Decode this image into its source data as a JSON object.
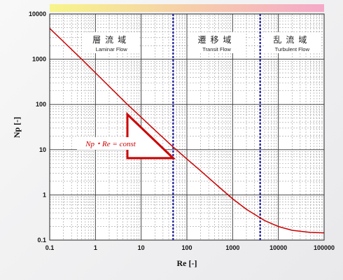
{
  "chart_data": {
    "type": "line",
    "x_scale": "log",
    "y_scale": "log",
    "xlim": [
      0.1,
      100000
    ],
    "ylim": [
      0.1,
      10000
    ],
    "xlabel": "Re [-]",
    "ylabel": "Np [-]",
    "x_ticks": [
      "0.1",
      "1",
      "10",
      "100",
      "1000",
      "10000",
      "100000"
    ],
    "y_ticks": [
      "10000",
      "1000",
      "100",
      "10",
      "1",
      "0.1"
    ],
    "grid": true,
    "series": [
      {
        "color": "#cc0000",
        "x": [
          0.1,
          0.2,
          0.5,
          1,
          2,
          5,
          10,
          20,
          50,
          100,
          200,
          500,
          1000,
          2000,
          5000,
          10000,
          20000,
          50000,
          100000
        ],
        "y": [
          4800,
          2450,
          1000,
          500,
          250,
          100,
          52,
          27,
          11.5,
          6.2,
          3.4,
          1.5,
          0.82,
          0.48,
          0.27,
          0.2,
          0.165,
          0.148,
          0.145
        ]
      }
    ],
    "regions": [
      {
        "label_jp": "層流域",
        "label_en": "Laminar Flow",
        "x_from": 0.1,
        "x_to": 50
      },
      {
        "label_jp": "遷移域",
        "label_en": "Transit Flow",
        "x_from": 50,
        "x_to": 4000
      },
      {
        "label_jp": "乱流域",
        "label_en": "Turbulent Flow",
        "x_from": 4000,
        "x_to": 100000
      }
    ],
    "boundaries": [
      50,
      4000
    ],
    "boundary_color": "#1a1aa0",
    "annotation": {
      "text": "Np・Re = const",
      "triangle_x": [
        5,
        50
      ],
      "triangle_y": [
        60,
        6.5
      ],
      "color": "#cc0000"
    },
    "top_bar_colors": [
      "#f7f58a",
      "#f5a8c8"
    ]
  }
}
